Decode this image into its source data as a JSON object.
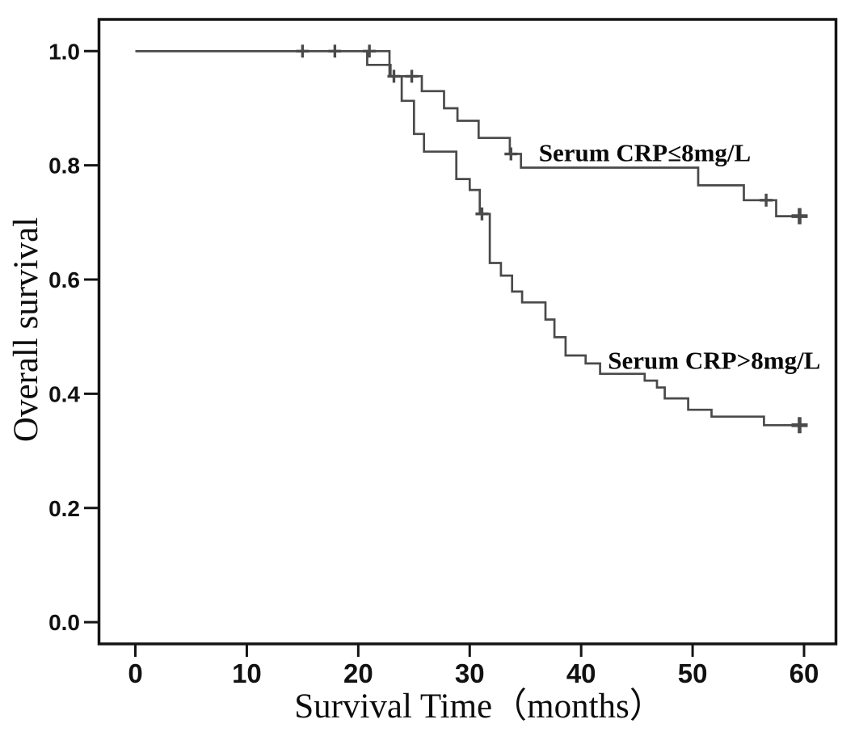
{
  "figure": {
    "kind": "kaplan-meier-survival-plot",
    "background": "#ffffff",
    "axis_color": "#141414",
    "curve_color": "#4a4a4a",
    "text_color": "#0d0d0d"
  },
  "chart_data": {
    "type": "line",
    "subtype": "step-survival",
    "title": "",
    "xlabel": "Survival Time（months）",
    "ylabel": "Overall survival",
    "xlim": [
      -3.3,
      62.9
    ],
    "ylim": [
      -0.038,
      1.057
    ],
    "grid": false,
    "legend_position": "inline-annotations",
    "xtick_values": [
      0,
      10,
      20,
      30,
      40,
      50,
      60
    ],
    "xtick_labels": [
      "0",
      "10",
      "20",
      "30",
      "40",
      "50",
      "60"
    ],
    "ytick_values": [
      1.0,
      0.8,
      0.6,
      0.4,
      0.2,
      0.0
    ],
    "ytick_labels": [
      "1.0",
      "0.8",
      "0.6",
      "0.4",
      "0.2",
      "0.0"
    ],
    "series": [
      {
        "id": "curve-crp-le-8",
        "name": "Serum CRP≤8mg/L",
        "label_anchor": [
          36.2,
          0.807
        ],
        "points": [
          [
            0,
            1.0
          ],
          [
            22.8,
            1.0
          ],
          [
            22.8,
            0.956
          ],
          [
            25.7,
            0.956
          ],
          [
            25.7,
            0.93
          ],
          [
            27.7,
            0.93
          ],
          [
            27.7,
            0.9
          ],
          [
            28.9,
            0.9
          ],
          [
            28.9,
            0.878
          ],
          [
            30.8,
            0.878
          ],
          [
            30.8,
            0.848
          ],
          [
            33.6,
            0.848
          ],
          [
            33.6,
            0.82
          ],
          [
            34.6,
            0.82
          ],
          [
            34.6,
            0.796
          ],
          [
            50.5,
            0.796
          ],
          [
            50.5,
            0.765
          ],
          [
            54.6,
            0.765
          ],
          [
            54.6,
            0.739
          ],
          [
            57.5,
            0.739
          ],
          [
            57.5,
            0.711
          ],
          [
            60.3,
            0.711
          ]
        ],
        "censors": [
          [
            15.0,
            1.0,
            0
          ],
          [
            17.9,
            1.0,
            0
          ],
          [
            24.8,
            0.956,
            0
          ],
          [
            33.7,
            0.82,
            0
          ],
          [
            56.6,
            0.739,
            0
          ],
          [
            59.6,
            0.711,
            1
          ]
        ]
      },
      {
        "id": "curve-crp-gt-8",
        "name": "Serum CRP>8mg/L",
        "label_anchor": [
          42.4,
          0.444
        ],
        "points": [
          [
            0,
            1.0
          ],
          [
            20.8,
            1.0
          ],
          [
            20.8,
            0.976
          ],
          [
            22.9,
            0.976
          ],
          [
            22.9,
            0.956
          ],
          [
            23.9,
            0.956
          ],
          [
            23.9,
            0.913
          ],
          [
            25.0,
            0.913
          ],
          [
            25.0,
            0.855
          ],
          [
            25.9,
            0.855
          ],
          [
            25.9,
            0.824
          ],
          [
            28.8,
            0.824
          ],
          [
            28.8,
            0.776
          ],
          [
            30.0,
            0.776
          ],
          [
            30.0,
            0.757
          ],
          [
            30.9,
            0.757
          ],
          [
            30.9,
            0.715
          ],
          [
            31.8,
            0.715
          ],
          [
            31.8,
            0.629
          ],
          [
            32.8,
            0.629
          ],
          [
            32.8,
            0.607
          ],
          [
            33.8,
            0.607
          ],
          [
            33.8,
            0.579
          ],
          [
            34.7,
            0.579
          ],
          [
            34.7,
            0.56
          ],
          [
            36.8,
            0.56
          ],
          [
            36.8,
            0.53
          ],
          [
            37.6,
            0.53
          ],
          [
            37.6,
            0.499
          ],
          [
            38.6,
            0.499
          ],
          [
            38.6,
            0.467
          ],
          [
            40.4,
            0.467
          ],
          [
            40.4,
            0.453
          ],
          [
            41.7,
            0.453
          ],
          [
            41.7,
            0.435
          ],
          [
            45.7,
            0.435
          ],
          [
            45.7,
            0.423
          ],
          [
            46.8,
            0.423
          ],
          [
            46.8,
            0.411
          ],
          [
            47.5,
            0.411
          ],
          [
            47.5,
            0.392
          ],
          [
            49.6,
            0.392
          ],
          [
            49.6,
            0.372
          ],
          [
            51.7,
            0.372
          ],
          [
            51.7,
            0.36
          ],
          [
            56.4,
            0.36
          ],
          [
            56.4,
            0.345
          ],
          [
            60.3,
            0.345
          ]
        ],
        "censors": [
          [
            21.0,
            1.0,
            0
          ],
          [
            23.2,
            0.956,
            0
          ],
          [
            31.1,
            0.715,
            0
          ],
          [
            59.6,
            0.345,
            1
          ]
        ]
      }
    ]
  }
}
